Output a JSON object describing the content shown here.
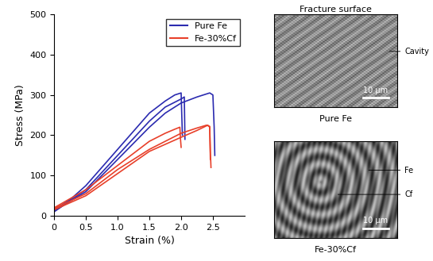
{
  "chart_data": {
    "type": "line",
    "x_label": "Strain (%)",
    "y_label": "Stress (MPa)",
    "xlim": [
      0,
      3.0
    ],
    "xticks": [
      0,
      0.5,
      {
        "value": 1,
        "label": "1.0"
      },
      1.5,
      {
        "value": 2,
        "label": "2.0"
      },
      2.5
    ],
    "ylim": [
      0,
      500
    ],
    "yticks": [
      0,
      100,
      200,
      300,
      400,
      500
    ],
    "legend": "upper right",
    "series": [
      {
        "name": "Pure Fe",
        "color": "#2b2bb0",
        "curves": [
          {
            "x": [
              0,
              0.25,
              0.5,
              0.75,
              1.0,
              1.25,
              1.5,
              1.75,
              1.9,
              2.0,
              2.01,
              2.02
            ],
            "values": [
              15,
              40,
              75,
              120,
              165,
              210,
              255,
              285,
              300,
              305,
              250,
              200
            ]
          },
          {
            "x": [
              0,
              0.5,
              1.0,
              1.5,
              1.75,
              2.0,
              2.05,
              2.06
            ],
            "values": [
              10,
              65,
              150,
              235,
              270,
              290,
              295,
              190
            ]
          },
          {
            "x": [
              0,
              0.5,
              1.0,
              1.5,
              1.75,
              2.0,
              2.25,
              2.45,
              2.5,
              2.52,
              2.53
            ],
            "values": [
              12,
              60,
              140,
              220,
              255,
              280,
              295,
              305,
              300,
              220,
              150
            ]
          }
        ]
      },
      {
        "name": "Fe-30%Cf",
        "color": "#e8402a",
        "curves": [
          {
            "x": [
              0,
              0.5,
              1.0,
              1.25,
              1.5,
              1.75,
              1.9,
              1.98,
              1.99,
              2.0
            ],
            "values": [
              20,
              65,
              125,
              155,
              185,
              205,
              215,
              220,
              190,
              170
            ]
          },
          {
            "x": [
              0,
              0.5,
              1.0,
              1.5,
              1.75,
              2.0,
              2.25,
              2.4,
              2.45,
              2.46,
              2.47
            ],
            "values": [
              18,
              55,
              115,
              165,
              185,
              205,
              218,
              225,
              222,
              160,
              120
            ]
          },
          {
            "x": [
              0,
              0.5,
              1.0,
              1.5,
              2.0,
              2.25,
              2.42,
              2.45,
              2.46
            ],
            "values": [
              15,
              50,
              105,
              160,
              195,
              212,
              225,
              220,
              140
            ]
          }
        ]
      }
    ]
  },
  "images": [
    {
      "title": "Fracture surface",
      "caption": "Pure Fe",
      "annotations": [
        "Cavity"
      ],
      "scale_bar": "10 μm"
    },
    {
      "caption": "Fe-30%Cf",
      "annotations": [
        "Fe",
        "Cf"
      ],
      "scale_bar": "10 μm"
    }
  ]
}
